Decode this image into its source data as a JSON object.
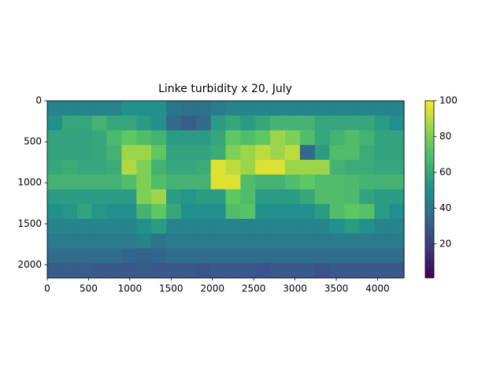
{
  "chart_data": {
    "type": "heatmap",
    "title": "Linke turbidity x 20, July",
    "colormap": "viridis",
    "xlim": [
      0,
      4320
    ],
    "ylim": [
      2160,
      0
    ],
    "xticks": [
      0,
      500,
      1000,
      1500,
      2000,
      2500,
      3000,
      3500,
      4000
    ],
    "yticks": [
      0,
      500,
      1000,
      1500,
      2000
    ],
    "colorbar": {
      "lim": [
        1,
        100
      ],
      "ticks": [
        20,
        40,
        60,
        80,
        100
      ]
    },
    "z": [
      [
        45,
        45,
        45,
        45,
        45,
        50,
        50,
        50,
        40,
        38,
        38,
        42,
        45,
        45,
        45,
        45,
        45,
        45,
        45,
        45,
        45,
        45,
        45,
        45
      ],
      [
        50,
        60,
        60,
        65,
        60,
        60,
        55,
        50,
        35,
        30,
        35,
        55,
        60,
        55,
        60,
        65,
        65,
        65,
        60,
        60,
        60,
        60,
        55,
        50
      ],
      [
        58,
        58,
        58,
        60,
        68,
        75,
        70,
        65,
        55,
        55,
        55,
        60,
        75,
        70,
        75,
        85,
        80,
        70,
        60,
        65,
        70,
        65,
        58,
        58
      ],
      [
        58,
        58,
        58,
        60,
        65,
        85,
        85,
        75,
        58,
        58,
        58,
        62,
        80,
        85,
        90,
        85,
        90,
        35,
        55,
        70,
        70,
        62,
        58,
        58
      ],
      [
        60,
        62,
        60,
        60,
        62,
        88,
        80,
        65,
        60,
        60,
        62,
        95,
        90,
        85,
        95,
        95,
        85,
        85,
        85,
        65,
        62,
        62,
        60,
        60
      ],
      [
        65,
        65,
        65,
        65,
        65,
        70,
        80,
        70,
        65,
        65,
        65,
        95,
        95,
        70,
        65,
        65,
        70,
        75,
        70,
        70,
        68,
        65,
        65,
        65
      ],
      [
        55,
        55,
        55,
        55,
        55,
        55,
        80,
        85,
        55,
        52,
        55,
        55,
        75,
        70,
        55,
        55,
        55,
        60,
        70,
        70,
        68,
        58,
        55,
        55
      ],
      [
        50,
        52,
        58,
        52,
        50,
        50,
        65,
        75,
        60,
        50,
        50,
        50,
        70,
        72,
        50,
        50,
        50,
        50,
        55,
        70,
        75,
        72,
        55,
        50
      ],
      [
        45,
        45,
        45,
        45,
        45,
        45,
        50,
        55,
        45,
        45,
        45,
        45,
        45,
        45,
        45,
        45,
        45,
        45,
        45,
        50,
        55,
        50,
        45,
        45
      ],
      [
        42,
        42,
        42,
        42,
        42,
        42,
        45,
        40,
        42,
        42,
        42,
        42,
        42,
        42,
        42,
        42,
        42,
        42,
        42,
        42,
        42,
        42,
        42,
        42
      ],
      [
        36,
        36,
        36,
        36,
        36,
        34,
        32,
        34,
        36,
        36,
        36,
        36,
        36,
        36,
        36,
        36,
        36,
        36,
        36,
        36,
        36,
        36,
        36,
        36
      ],
      [
        30,
        30,
        30,
        28,
        28,
        28,
        30,
        28,
        28,
        28,
        26,
        28,
        28,
        28,
        26,
        28,
        28,
        28,
        26,
        28,
        28,
        28,
        28,
        28
      ]
    ]
  }
}
